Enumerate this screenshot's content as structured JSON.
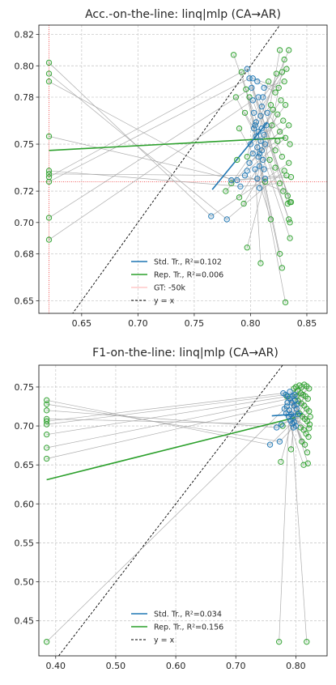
{
  "chart_data": [
    {
      "type": "scatter",
      "title": "Acc.-on-the-line: linq|mlp  (CA→AR)",
      "xlabel": "",
      "ylabel": "",
      "xlim": [
        0.612,
        0.868
      ],
      "ylim": [
        0.642,
        0.826
      ],
      "xticks": [
        0.65,
        0.7,
        0.75,
        0.8,
        0.85
      ],
      "xtick_labels": [
        "0.65",
        "0.70",
        "0.75",
        "0.80",
        "0.85"
      ],
      "yticks": [
        0.65,
        0.68,
        0.7,
        0.72,
        0.75,
        0.78,
        0.8,
        0.82
      ],
      "ytick_labels": [
        "0.65",
        "0.68",
        "0.70",
        "0.72",
        "0.75",
        "0.78",
        "0.80",
        "0.82"
      ],
      "grid": true,
      "legend_position": "bottom-center",
      "colors": {
        "std": "#1f77b4",
        "rep": "#2ca02c",
        "gt": "#ff7f7f",
        "pair_line": "#a0a0a0",
        "diag": "#000000"
      },
      "legend": [
        {
          "label": "Std. Tr., R²=0.102",
          "kind": "line",
          "color": "#1f77b4"
        },
        {
          "label": "Rep. Tr., R²=0.006",
          "kind": "line",
          "color": "#2ca02c"
        },
        {
          "label": "GT: -50k",
          "kind": "line",
          "color": "#ff9a9a"
        },
        {
          "label": "y = x",
          "kind": "dashed",
          "color": "#000000"
        }
      ],
      "gt_point": {
        "x": 0.621,
        "y": 0.726
      },
      "std_fit": {
        "x": [
          0.766,
          0.815
        ],
        "y": [
          0.721,
          0.764
        ]
      },
      "rep_fit": {
        "x": [
          0.621,
          0.83
        ],
        "y": [
          0.746,
          0.754
        ]
      },
      "series": [
        {
          "name": "Std. Tr.",
          "points": [
            [
              0.765,
              0.704
            ],
            [
              0.779,
              0.702
            ],
            [
              0.783,
              0.727
            ],
            [
              0.788,
              0.727
            ],
            [
              0.791,
              0.723
            ],
            [
              0.795,
              0.73
            ],
            [
              0.797,
              0.798
            ],
            [
              0.799,
              0.792
            ],
            [
              0.801,
              0.786
            ],
            [
              0.802,
              0.778
            ],
            [
              0.803,
              0.77
            ],
            [
              0.804,
              0.762
            ],
            [
              0.805,
              0.755
            ],
            [
              0.806,
              0.748
            ],
            [
              0.807,
              0.742
            ],
            [
              0.808,
              0.736
            ],
            [
              0.803,
              0.76
            ],
            [
              0.805,
              0.764
            ],
            [
              0.807,
              0.758
            ],
            [
              0.809,
              0.752
            ],
            [
              0.81,
              0.746
            ],
            [
              0.811,
              0.74
            ],
            [
              0.812,
              0.734
            ],
            [
              0.813,
              0.728
            ],
            [
              0.804,
              0.734
            ],
            [
              0.806,
              0.728
            ],
            [
              0.808,
              0.722
            ],
            [
              0.809,
              0.768
            ],
            [
              0.81,
              0.774
            ],
            [
              0.811,
              0.78
            ],
            [
              0.812,
              0.786
            ],
            [
              0.802,
              0.792
            ],
            [
              0.806,
              0.79
            ],
            [
              0.81,
              0.76
            ],
            [
              0.812,
              0.756
            ],
            [
              0.814,
              0.762
            ],
            [
              0.808,
              0.744
            ],
            [
              0.8,
              0.75
            ],
            [
              0.802,
              0.744
            ],
            [
              0.799,
              0.738
            ],
            [
              0.797,
              0.733
            ],
            [
              0.815,
              0.77
            ],
            [
              0.813,
              0.75
            ],
            [
              0.807,
              0.78
            ]
          ]
        },
        {
          "name": "Rep. Tr.",
          "points": [
            [
              0.621,
              0.802
            ],
            [
              0.621,
              0.795
            ],
            [
              0.621,
              0.79
            ],
            [
              0.621,
              0.755
            ],
            [
              0.621,
              0.733
            ],
            [
              0.621,
              0.731
            ],
            [
              0.621,
              0.729
            ],
            [
              0.621,
              0.726
            ],
            [
              0.621,
              0.703
            ],
            [
              0.621,
              0.689
            ],
            [
              0.785,
              0.807
            ],
            [
              0.792,
              0.796
            ],
            [
              0.787,
              0.78
            ],
            [
              0.796,
              0.785
            ],
            [
              0.799,
              0.78
            ],
            [
              0.79,
              0.76
            ],
            [
              0.795,
              0.77
            ],
            [
              0.797,
              0.742
            ],
            [
              0.788,
              0.74
            ],
            [
              0.783,
              0.725
            ],
            [
              0.778,
              0.72
            ],
            [
              0.79,
              0.716
            ],
            [
              0.794,
              0.712
            ],
            [
              0.797,
              0.684
            ],
            [
              0.809,
              0.674
            ],
            [
              0.826,
              0.81
            ],
            [
              0.83,
              0.804
            ],
            [
              0.834,
              0.81
            ],
            [
              0.832,
              0.798
            ],
            [
              0.828,
              0.796
            ],
            [
              0.83,
              0.79
            ],
            [
              0.825,
              0.786
            ],
            [
              0.822,
              0.783
            ],
            [
              0.827,
              0.778
            ],
            [
              0.831,
              0.775
            ],
            [
              0.82,
              0.772
            ],
            [
              0.824,
              0.769
            ],
            [
              0.829,
              0.765
            ],
            [
              0.834,
              0.762
            ],
            [
              0.826,
              0.758
            ],
            [
              0.831,
              0.754
            ],
            [
              0.835,
              0.75
            ],
            [
              0.822,
              0.746
            ],
            [
              0.828,
              0.742
            ],
            [
              0.834,
              0.738
            ],
            [
              0.83,
              0.733
            ],
            [
              0.832,
              0.73
            ],
            [
              0.836,
              0.729
            ],
            [
              0.826,
              0.725
            ],
            [
              0.829,
              0.72
            ],
            [
              0.833,
              0.717
            ],
            [
              0.835,
              0.713
            ],
            [
              0.833,
              0.712
            ],
            [
              0.836,
              0.713
            ],
            [
              0.834,
              0.702
            ],
            [
              0.835,
              0.7
            ],
            [
              0.835,
              0.69
            ],
            [
              0.826,
              0.68
            ],
            [
              0.828,
              0.671
            ],
            [
              0.831,
              0.649
            ],
            [
              0.818,
              0.775
            ],
            [
              0.816,
              0.79
            ],
            [
              0.823,
              0.795
            ],
            [
              0.819,
              0.762
            ],
            [
              0.824,
              0.752
            ],
            [
              0.817,
              0.74
            ],
            [
              0.822,
              0.735
            ],
            [
              0.813,
              0.726
            ],
            [
              0.818,
              0.702
            ]
          ]
        }
      ]
    },
    {
      "type": "scatter",
      "title": "F1-on-the-line: linq|mlp  (CA→AR)",
      "xlabel": "",
      "ylabel": "",
      "xlim": [
        0.372,
        0.852
      ],
      "ylim": [
        0.405,
        0.778
      ],
      "xticks": [
        0.4,
        0.5,
        0.6,
        0.7,
        0.8
      ],
      "xtick_labels": [
        "0.40",
        "0.50",
        "0.60",
        "0.70",
        "0.80"
      ],
      "yticks": [
        0.45,
        0.5,
        0.55,
        0.6,
        0.65,
        0.7,
        0.75
      ],
      "ytick_labels": [
        "0.45",
        "0.50",
        "0.55",
        "0.60",
        "0.65",
        "0.70",
        "0.75"
      ],
      "grid": true,
      "legend_position": "bottom-center",
      "colors": {
        "std": "#1f77b4",
        "rep": "#2ca02c",
        "pair_line": "#a0a0a0",
        "diag": "#000000"
      },
      "legend": [
        {
          "label": "Std. Tr., R²=0.034",
          "kind": "line",
          "color": "#1f77b4"
        },
        {
          "label": "Rep. Tr., R²=0.156",
          "kind": "line",
          "color": "#2ca02c"
        },
        {
          "label": "y = x",
          "kind": "dashed",
          "color": "#000000"
        }
      ],
      "std_fit": {
        "x": [
          0.76,
          0.812
        ],
        "y": [
          0.713,
          0.716
        ]
      },
      "rep_fit": {
        "x": [
          0.385,
          0.8
        ],
        "y": [
          0.631,
          0.711
        ]
      },
      "series": [
        {
          "name": "Std. Tr.",
          "points": [
            [
              0.757,
              0.676
            ],
            [
              0.773,
              0.68
            ],
            [
              0.768,
              0.698
            ],
            [
              0.776,
              0.702
            ],
            [
              0.779,
              0.742
            ],
            [
              0.783,
              0.74
            ],
            [
              0.787,
              0.738
            ],
            [
              0.79,
              0.735
            ],
            [
              0.793,
              0.73
            ],
            [
              0.785,
              0.725
            ],
            [
              0.789,
              0.72
            ],
            [
              0.792,
              0.715
            ],
            [
              0.795,
              0.71
            ],
            [
              0.797,
              0.705
            ],
            [
              0.8,
              0.7
            ],
            [
              0.781,
              0.722
            ],
            [
              0.784,
              0.716
            ],
            [
              0.788,
              0.712
            ],
            [
              0.791,
              0.707
            ],
            [
              0.794,
              0.703
            ],
            [
              0.796,
              0.698
            ],
            [
              0.799,
              0.733
            ],
            [
              0.802,
              0.728
            ],
            [
              0.786,
              0.73
            ],
            [
              0.798,
              0.74
            ],
            [
              0.801,
              0.722
            ],
            [
              0.803,
              0.715
            ],
            [
              0.797,
              0.726
            ],
            [
              0.79,
              0.744
            ],
            [
              0.795,
              0.738
            ]
          ]
        },
        {
          "name": "Rep. Tr.",
          "points": [
            [
              0.385,
              0.733
            ],
            [
              0.385,
              0.728
            ],
            [
              0.385,
              0.72
            ],
            [
              0.385,
              0.709
            ],
            [
              0.385,
              0.706
            ],
            [
              0.385,
              0.702
            ],
            [
              0.385,
              0.689
            ],
            [
              0.385,
              0.672
            ],
            [
              0.385,
              0.658
            ],
            [
              0.385,
              0.423
            ],
            [
              0.772,
              0.423
            ],
            [
              0.818,
              0.423
            ],
            [
              0.775,
              0.654
            ],
            [
              0.792,
              0.67
            ],
            [
              0.778,
              0.7
            ],
            [
              0.785,
              0.738
            ],
            [
              0.8,
              0.75
            ],
            [
              0.806,
              0.752
            ],
            [
              0.81,
              0.75
            ],
            [
              0.814,
              0.753
            ],
            [
              0.818,
              0.751
            ],
            [
              0.822,
              0.748
            ],
            [
              0.803,
              0.745
            ],
            [
              0.808,
              0.742
            ],
            [
              0.812,
              0.74
            ],
            [
              0.816,
              0.738
            ],
            [
              0.82,
              0.735
            ],
            [
              0.804,
              0.732
            ],
            [
              0.809,
              0.729
            ],
            [
              0.814,
              0.726
            ],
            [
              0.818,
              0.722
            ],
            [
              0.822,
              0.719
            ],
            [
              0.806,
              0.716
            ],
            [
              0.811,
              0.712
            ],
            [
              0.815,
              0.709
            ],
            [
              0.819,
              0.706
            ],
            [
              0.823,
              0.702
            ],
            [
              0.808,
              0.698
            ],
            [
              0.813,
              0.695
            ],
            [
              0.817,
              0.69
            ],
            [
              0.821,
              0.686
            ],
            [
              0.81,
              0.68
            ],
            [
              0.815,
              0.676
            ],
            [
              0.819,
              0.666
            ],
            [
              0.82,
              0.652
            ],
            [
              0.813,
              0.65
            ],
            [
              0.822,
              0.697
            ],
            [
              0.824,
              0.712
            ],
            [
              0.797,
              0.748
            ],
            [
              0.801,
              0.738
            ]
          ]
        }
      ]
    }
  ]
}
